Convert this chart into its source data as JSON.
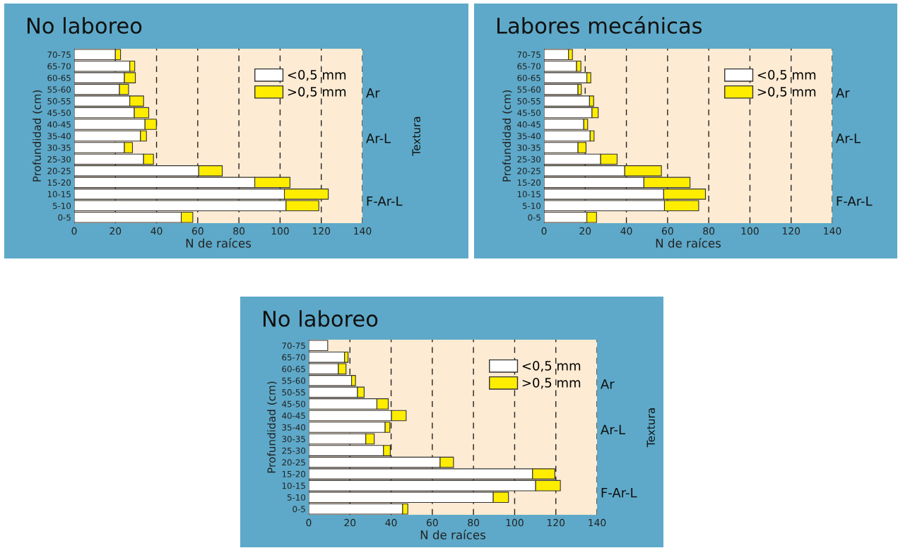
{
  "chart_data": [
    {
      "type": "bar",
      "orientation": "horizontal",
      "stacked": true,
      "title": "No laboreo",
      "xlabel": "N de raíces",
      "ylabel": "Profundidad (cm)",
      "y2label": "Textura",
      "categories": [
        "70-75",
        "65-70",
        "60-65",
        "55-60",
        "50-55",
        "45-50",
        "40-45",
        "35-40",
        "30-35",
        "25-30",
        "20-25",
        "15-20",
        "10-15",
        "5-10",
        "0-5"
      ],
      "series": [
        {
          "name": "<0,5 mm",
          "color": "#ffffff",
          "values": [
            20,
            27,
            24.4,
            22,
            27,
            29.2,
            34.4,
            32.2,
            24.4,
            33.7,
            60.5,
            87.7,
            102.1,
            102.9,
            52
          ]
        },
        {
          "name": ">0,5 mm",
          "color": "#ffed00",
          "values": [
            2.5,
            2.4,
            5.3,
            4.4,
            6.7,
            7,
            5.5,
            2.9,
            3.9,
            4.8,
            11.4,
            17.1,
            21.3,
            15.9,
            5.6
          ]
        }
      ],
      "xlim": [
        0,
        140
      ],
      "xticks": [
        0,
        20,
        40,
        60,
        80,
        100,
        120,
        140
      ],
      "grid": "x",
      "legend": "top right",
      "annotations": [
        "Ar",
        "Ar-L",
        "F-Ar-L"
      ]
    },
    {
      "type": "bar",
      "orientation": "horizontal",
      "stacked": true,
      "title": "Labores mecánicas",
      "xlabel": "N de raíces",
      "ylabel": "Profundidad (cm)",
      "categories": [
        "70-75",
        "65-70",
        "60-65",
        "55-60",
        "50-55",
        "45-50",
        "40-45",
        "35-40",
        "30-35",
        "25-30",
        "20-25",
        "15-20",
        "10-15",
        "5-10",
        "0-5"
      ],
      "series": [
        {
          "name": "<0,5 mm",
          "color": "#ffffff",
          "values": [
            11.9,
            15.8,
            20.8,
            16.5,
            22.1,
            23.3,
            19.3,
            22.4,
            16.5,
            27.5,
            39.2,
            48.5,
            58.1,
            58.5,
            20.8
          ]
        },
        {
          "name": ">0,5 mm",
          "color": "#ffed00",
          "values": [
            1.9,
            2.1,
            1.9,
            1.6,
            2,
            3,
            1.9,
            1.9,
            3.9,
            8,
            17.8,
            22.4,
            20.3,
            16.6,
            4.7
          ]
        }
      ],
      "xlim": [
        0,
        140
      ],
      "xticks": [
        0,
        20,
        40,
        60,
        80,
        100,
        120,
        140
      ],
      "grid": "x",
      "legend": "top right",
      "annotations": [
        "Ar",
        "Ar-L",
        "F-Ar-L"
      ]
    },
    {
      "type": "bar",
      "orientation": "horizontal",
      "stacked": true,
      "title": "No laboreo",
      "xlabel": "N de raíces",
      "ylabel": "Profundidad (cm)",
      "y2label": "Textura",
      "categories": [
        "70-75",
        "65-70",
        "60-65",
        "55-60",
        "50-55",
        "45-50",
        "40-45",
        "35-40",
        "30-35",
        "25-30",
        "20-25",
        "15-20",
        "10-15",
        "5-10",
        "0-5"
      ],
      "series": [
        {
          "name": "<0,5 mm",
          "color": "#ffffff",
          "values": [
            9.2,
            17.4,
            14.4,
            20.8,
            23.7,
            33.1,
            40.2,
            37.1,
            27.7,
            36.3,
            63.8,
            108.7,
            110.2,
            89.6,
            45.6
          ]
        },
        {
          "name": ">0,5 mm",
          "color": "#ffed00",
          "values": [
            null,
            1.7,
            3.7,
            1.9,
            3.2,
            5.5,
            7.1,
            2.3,
            4.1,
            3.3,
            6.5,
            10.8,
            12,
            7.4,
            2.5
          ]
        }
      ],
      "xlim": [
        0,
        140
      ],
      "xticks": [
        0,
        20,
        40,
        60,
        80,
        100,
        120,
        140
      ],
      "grid": "x",
      "legend": "top right",
      "annotations": [
        "Ar",
        "Ar-L",
        "F-Ar-L"
      ]
    }
  ]
}
